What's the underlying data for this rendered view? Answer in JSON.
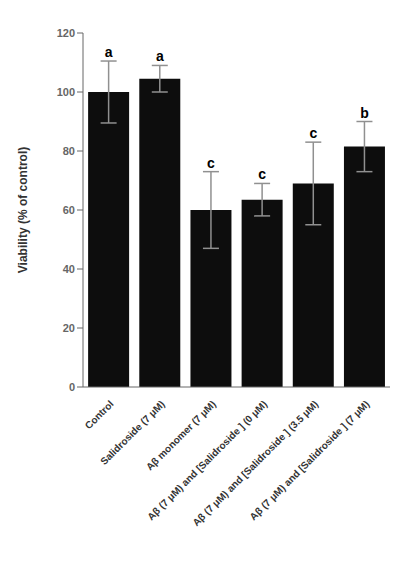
{
  "chart_data": {
    "type": "bar",
    "ylabel": "Viability (% of control)",
    "categories": [
      "Control",
      "Salidroside (7 μM)",
      "Aβ monomer (7 μM)",
      "Aβ (7 μM) and [Salidroside ] (0 μM)",
      "Aβ (7 μM) and [Salidroside ] (3.5 μM)",
      "Aβ (7 μM) and [Salidroside ] (7 μM)"
    ],
    "values": [
      100.0,
      104.5,
      60.0,
      63.5,
      69.0,
      81.5
    ],
    "errors": [
      10.5,
      4.5,
      13.0,
      5.5,
      14.0,
      8.5
    ],
    "error_color": "#909090",
    "annotations": [
      "a",
      "a",
      "c",
      "c",
      "c",
      "b"
    ],
    "color": "#0d0d0d",
    "ylim": [
      0,
      120
    ],
    "yticks": [
      0,
      20,
      40,
      60,
      80,
      100,
      120
    ]
  }
}
